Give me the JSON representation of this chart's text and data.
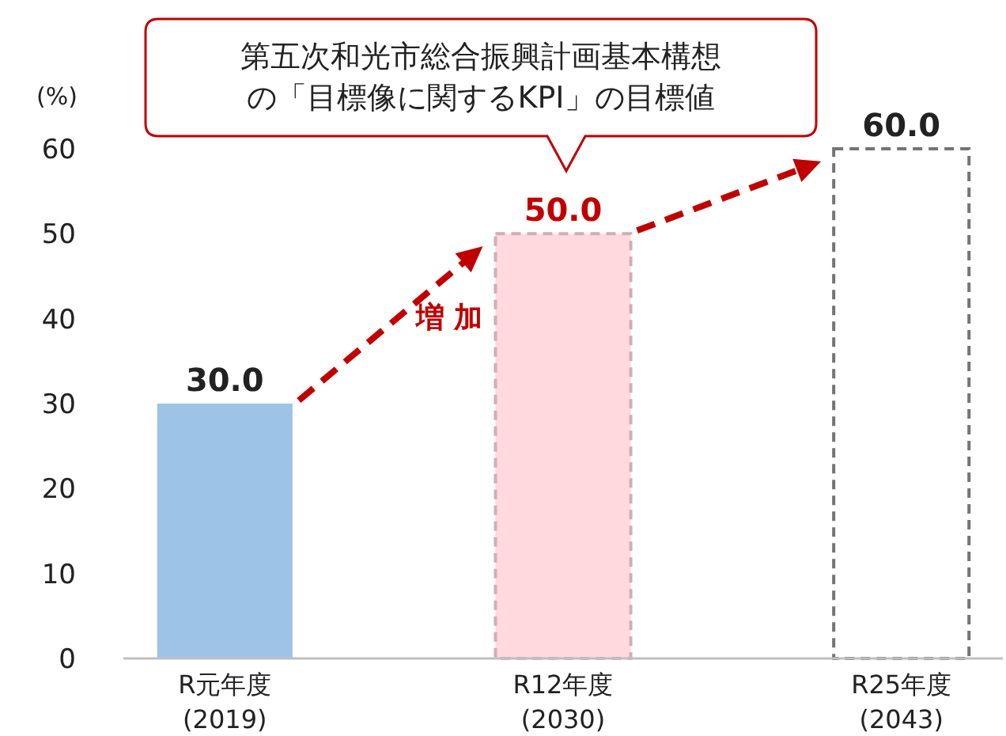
{
  "chart_data": {
    "type": "bar",
    "ylabel": "(%)",
    "categories": [
      "R元年度\n(2019)",
      "R12年度\n(2030)",
      "R25年度\n(2043)"
    ],
    "values": [
      30.0,
      50.0,
      60.0
    ],
    "colors": [
      "#9dc3e6",
      "#ffd9de",
      "#ffffff"
    ],
    "value_labels": [
      "30.0",
      "50.0",
      "60.0"
    ],
    "ylim": [
      0,
      60
    ],
    "yticks": [
      0,
      10,
      20,
      30,
      40,
      50,
      60
    ],
    "grid": false,
    "annotations": [
      "第五次和光市総合振興計画基本構想の「目標像に関するKPI」の目標値",
      "増 加"
    ]
  }
}
